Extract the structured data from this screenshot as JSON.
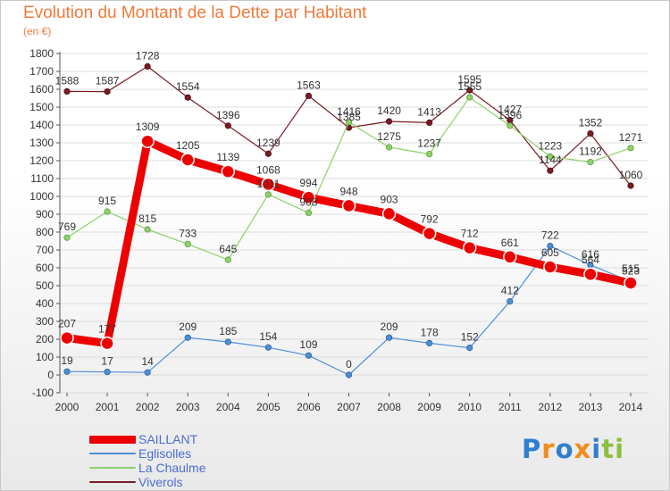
{
  "header": {
    "title": "Evolution du Montant de la Dette par Habitant",
    "subtitle": "(en €)"
  },
  "chart_data": {
    "type": "line",
    "title": "Evolution du Montant de la Dette par Habitant",
    "subtitle": "(en €)",
    "xlabel": "",
    "ylabel": "",
    "x": [
      "2000",
      "2001",
      "2002",
      "2003",
      "2004",
      "2005",
      "2006",
      "2007",
      "2008",
      "2009",
      "2010",
      "2011",
      "2012",
      "2013",
      "2014"
    ],
    "yticks": [
      -100,
      0,
      100,
      200,
      300,
      400,
      500,
      600,
      700,
      800,
      900,
      1000,
      1100,
      1200,
      1300,
      1400,
      1500,
      1600,
      1700,
      1800
    ],
    "ylim": [
      -100,
      1800
    ],
    "grid": true,
    "legend_position": "bottom-left",
    "series": [
      {
        "name": "SAILLANT",
        "color": "#ee0000",
        "values": [
          207,
          177,
          1309,
          1205,
          1139,
          1068,
          994,
          948,
          903,
          792,
          712,
          661,
          605,
          564,
          515
        ]
      },
      {
        "name": "Eglisolles",
        "color": "#4d8fd6",
        "values": [
          19,
          17,
          14,
          209,
          185,
          154,
          109,
          0,
          209,
          178,
          152,
          412,
          722,
          616,
          523
        ]
      },
      {
        "name": "La Chaulme",
        "color": "#8ed16a",
        "values": [
          769,
          915,
          815,
          733,
          645,
          1011,
          908,
          1416,
          1275,
          1237,
          1555,
          1396,
          1223,
          1192,
          1271
        ]
      },
      {
        "name": "Viverols",
        "color": "#7a1c24",
        "values": [
          1588,
          1587,
          1728,
          1554,
          1396,
          1239,
          1563,
          1385,
          1420,
          1413,
          1595,
          1427,
          1144,
          1352,
          1060
        ]
      }
    ]
  },
  "legend": {
    "items": [
      {
        "label": "SAILLANT",
        "color": "#ee0000"
      },
      {
        "label": "Eglisolles",
        "color": "#4d8fd6"
      },
      {
        "label": "La Chaulme",
        "color": "#8ed16a"
      },
      {
        "label": "Viverols",
        "color": "#7a1c24"
      }
    ]
  },
  "brand": {
    "letters": [
      {
        "ch": "P",
        "color": "#2f7fcf"
      },
      {
        "ch": "r",
        "color": "#f28c1c"
      },
      {
        "ch": "o",
        "color": "#2f7fcf"
      },
      {
        "ch": "x",
        "color": "#f28c1c"
      },
      {
        "ch": "i",
        "color": "#2f7fcf"
      },
      {
        "ch": "t",
        "color": "#8cbf3f"
      },
      {
        "ch": "i",
        "color": "#8cbf3f"
      }
    ]
  }
}
